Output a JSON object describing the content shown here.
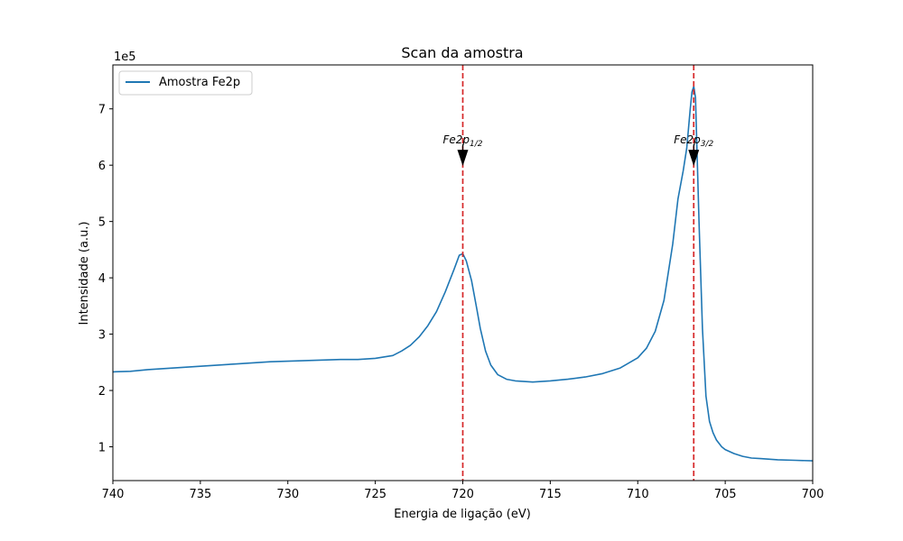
{
  "chart_data": {
    "type": "line",
    "title": "Scan da amostra",
    "xlabel": "Energia de ligação (eV)",
    "ylabel": "Intensidade (a.u.)",
    "y_offset_label": "1e5",
    "xlim": [
      740,
      700
    ],
    "ylim": [
      0.4,
      7.78
    ],
    "x_ticks": [
      740,
      735,
      730,
      725,
      720,
      715,
      710,
      705,
      700
    ],
    "y_ticks": [
      1,
      2,
      3,
      4,
      5,
      6,
      7
    ],
    "grid": false,
    "legend_position": "top-left",
    "series": [
      {
        "name": "Amostra Fe2p",
        "color": "#1f77b4",
        "x": [
          740,
          739,
          738,
          737,
          736,
          735,
          734,
          733,
          732,
          731,
          730,
          729,
          728,
          727,
          726,
          725,
          724,
          723.5,
          723,
          722.5,
          722,
          721.5,
          721,
          720.5,
          720.2,
          720,
          719.8,
          719.5,
          719.2,
          719,
          718.7,
          718.4,
          718,
          717.5,
          717,
          716.5,
          716,
          715,
          714,
          713,
          712,
          711,
          710,
          709.5,
          709,
          708.5,
          708,
          707.7,
          707.4,
          707.2,
          707,
          706.9,
          706.8,
          706.7,
          706.5,
          706.3,
          706.1,
          705.9,
          705.7,
          705.5,
          705.2,
          705,
          704.5,
          704,
          703.5,
          703,
          702,
          701,
          700
        ],
        "y": [
          2.33,
          2.34,
          2.37,
          2.39,
          2.41,
          2.43,
          2.45,
          2.47,
          2.49,
          2.51,
          2.52,
          2.53,
          2.54,
          2.55,
          2.55,
          2.57,
          2.62,
          2.7,
          2.8,
          2.95,
          3.15,
          3.4,
          3.75,
          4.15,
          4.4,
          4.43,
          4.3,
          3.95,
          3.45,
          3.1,
          2.7,
          2.45,
          2.28,
          2.2,
          2.17,
          2.16,
          2.15,
          2.17,
          2.2,
          2.24,
          2.3,
          2.4,
          2.58,
          2.75,
          3.05,
          3.6,
          4.6,
          5.4,
          5.9,
          6.3,
          7.0,
          7.3,
          7.4,
          7.2,
          5.0,
          3.1,
          1.9,
          1.45,
          1.25,
          1.12,
          1.0,
          0.95,
          0.88,
          0.83,
          0.8,
          0.79,
          0.77,
          0.76,
          0.75
        ]
      }
    ],
    "vlines": [
      {
        "x": 720.0,
        "color": "#d62728"
      },
      {
        "x": 706.8,
        "color": "#d62728"
      }
    ],
    "annotations": [
      {
        "base": "Fe2p",
        "sub": "1/2",
        "x": 720.0,
        "y": 6.05
      },
      {
        "base": "Fe2p",
        "sub": "3/2",
        "x": 706.8,
        "y": 6.05
      }
    ]
  }
}
